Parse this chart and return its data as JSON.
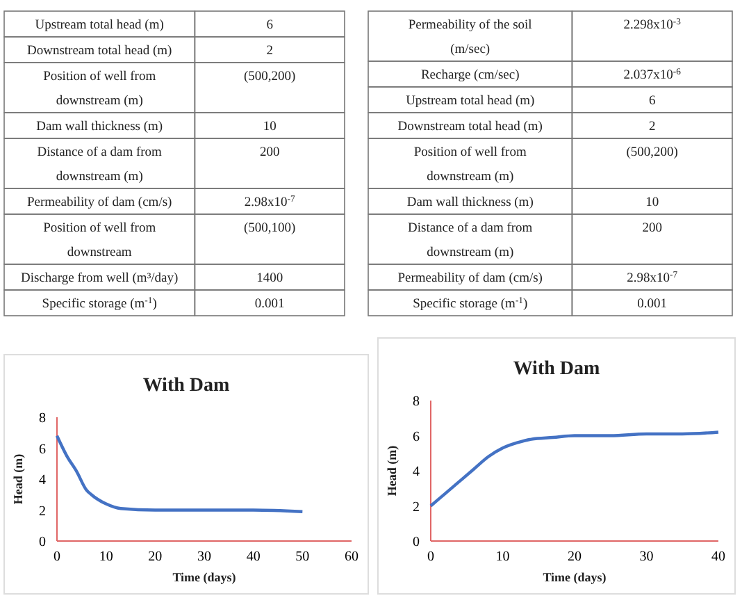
{
  "chart_data": [
    {
      "type": "other",
      "annotations": [
        "Upstream total head (m)",
        "6",
        "Downstream total head (m)",
        "2",
        "Position of well from downstream (m)",
        "(500,200)",
        "Dam wall thickness (m)",
        "10",
        "Distance of a dam from downstream (m)",
        "200",
        "Permeability of dam (cm/s)",
        "2.98x10$^{-7}$",
        "Position of well from downstream",
        "(500,100)",
        "Discharge from well (m³/day)",
        "1400",
        "Specific storage (m$^{-1}$)",
        "0.001"
      ]
    },
    {
      "type": "other",
      "annotations": [
        "Permeability of the soil (m/sec)",
        "2.298x10$^{-3}$",
        "Recharge (cm/sec)",
        "2.037x10$^{-6}$",
        "Upstream total head (m)",
        "6",
        "Downstream total head (m)",
        "2",
        "Position of well from downstream (m)",
        "(500,200)",
        "Dam wall thickness (m)",
        "10",
        "Distance of a dam from downstream (m)",
        "200",
        "Permeability of dam (cm/s)",
        "2.98x10$^{-7}$",
        "Specific storage (m$^{-1}$)",
        "0.001"
      ]
    },
    {
      "type": "line",
      "title": "With Dam",
      "xlabel": "Time (days)",
      "ylabel": "Head (m)",
      "xlim": [
        0,
        60
      ],
      "xticks": [
        0,
        10,
        20,
        30,
        40,
        50,
        60
      ],
      "ylim": [
        0,
        8
      ],
      "yticks": [
        0,
        2,
        4,
        6,
        8
      ],
      "series": [
        {
          "color": "#4472c4",
          "x": [
            0,
            2,
            4,
            6,
            7,
            10,
            13,
            20,
            30,
            40,
            50
          ],
          "values": [
            6.8,
            5.5,
            4.5,
            3.3,
            3.0,
            2.4,
            2.1,
            2.0,
            2.0,
            2.0,
            1.9
          ]
        }
      ]
    },
    {
      "type": "line",
      "title": "With Dam",
      "xlabel": "Time (days)",
      "ylabel": "Head (m)",
      "xlim": [
        0,
        40
      ],
      "xticks": [
        0,
        10,
        20,
        30,
        40
      ],
      "ylim": [
        0,
        8
      ],
      "yticks": [
        0,
        2,
        4,
        6,
        8
      ],
      "series": [
        {
          "color": "#4472c4",
          "x": [
            0,
            2,
            4,
            6,
            8,
            10,
            12,
            14,
            17,
            20,
            25,
            30,
            35,
            40
          ],
          "values": [
            2.0,
            2.7,
            3.4,
            4.1,
            4.8,
            5.3,
            5.6,
            5.8,
            5.9,
            6.0,
            6.0,
            6.1,
            6.1,
            6.2
          ]
        }
      ]
    }
  ]
}
